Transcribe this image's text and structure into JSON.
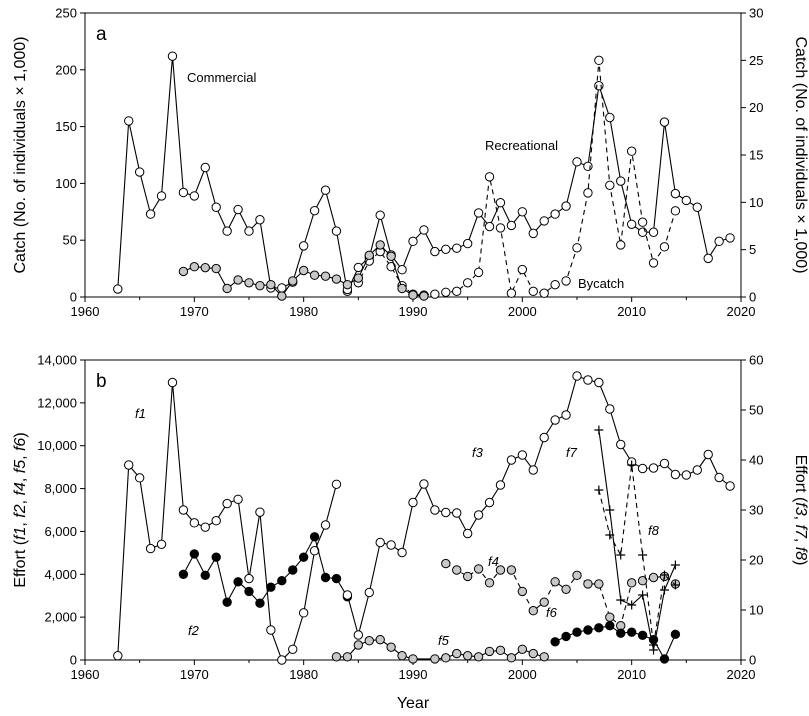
{
  "chart_data": [
    {
      "type": "line",
      "panel": "a",
      "xlabel": "",
      "ylabel": "Catch (No. of individuals × 1,000)",
      "y2label": "Catch (No. of individuals × 1,000)",
      "xlim": [
        1960,
        2020
      ],
      "ylim": [
        0,
        250
      ],
      "y2lim": [
        0,
        30
      ],
      "xticks": [
        "1960",
        "1970",
        "1980",
        "1990",
        "2000",
        "2010",
        "2020"
      ],
      "yticks": [
        "0",
        "50",
        "100",
        "150",
        "200",
        "250"
      ],
      "y2ticks": [
        "0",
        "5",
        "10",
        "15",
        "20",
        "25",
        "30"
      ],
      "series": [
        {
          "name": "Commercial",
          "axis": "left",
          "line": "solid",
          "marker": "open",
          "x": [
            1963,
            1964,
            1965,
            1966,
            1967,
            1968,
            1969,
            1970,
            1971,
            1972,
            1973,
            1974,
            1975,
            1976,
            1977,
            1978,
            1979,
            1980,
            1981,
            1982,
            1983,
            1984,
            1985,
            1986,
            1987,
            1988,
            1989,
            1990,
            1991,
            1992,
            1993,
            1994,
            1995,
            1996,
            1997,
            1998,
            1999,
            2000,
            2001,
            2002,
            2003,
            2004,
            2005,
            2006,
            2007,
            2008,
            2009,
            2010,
            2011,
            2012,
            2013,
            2014,
            2015,
            2016,
            2017,
            2018,
            2019
          ],
          "y": [
            7,
            155,
            110,
            73,
            89,
            212,
            92,
            89,
            114,
            79,
            58,
            77,
            58,
            68,
            8,
            8,
            13,
            45,
            76,
            94,
            58,
            5,
            26,
            35,
            72,
            37,
            24,
            49,
            59,
            40,
            42,
            43,
            47,
            74,
            62,
            83,
            63,
            75,
            56,
            67,
            73,
            80,
            119,
            115,
            186,
            158,
            102,
            64,
            57,
            57,
            154,
            91,
            85,
            79,
            34,
            49,
            52
          ]
        },
        {
          "name": "Recreational",
          "axis": "right",
          "line": "dashed",
          "marker": "open",
          "x": [
            1984,
            1985,
            1986,
            1987,
            1988,
            1989,
            1990,
            1991,
            1992,
            1993,
            1994,
            1995,
            1996,
            1997,
            1998,
            1999,
            2000,
            2001,
            2002,
            2003,
            2004,
            2005,
            2006,
            2007,
            2008,
            2009,
            2010,
            2011,
            2012,
            2013,
            2014
          ],
          "y": [
            0.8,
            1.5,
            3.8,
            4.8,
            3.2,
            1.2,
            0.3,
            0.2,
            0.3,
            0.5,
            0.6,
            1.5,
            2.6,
            12.7,
            7.3,
            0.4,
            2.9,
            0.6,
            0.4,
            1.3,
            1.7,
            5.2,
            11,
            25,
            11.8,
            5.5,
            15.4,
            7.9,
            3.6,
            5.3,
            9.1
          ]
        },
        {
          "name": "Bycatch",
          "axis": "right",
          "line": "solid",
          "marker": "grey",
          "x": [
            1969,
            1970,
            1971,
            1972,
            1973,
            1974,
            1975,
            1976,
            1977,
            1978,
            1979,
            1980,
            1981,
            1982,
            1983,
            1984,
            1985,
            1986,
            1987,
            1988,
            1989,
            1990,
            1991
          ],
          "y": [
            2.7,
            3.2,
            3.1,
            3,
            0.9,
            1.8,
            1.5,
            1.2,
            1.3,
            0.1,
            1.7,
            2.8,
            2.3,
            2.2,
            1.9,
            1.3,
            2,
            4.4,
            5.5,
            4.3,
            0.9,
            0.2,
            0.1
          ]
        }
      ],
      "annotations": [
        "Commercial",
        "Recreational",
        "Bycatch"
      ]
    },
    {
      "type": "line",
      "panel": "b",
      "xlabel": "Year",
      "ylabel": "Effort (f1, f2, f4, f5, f6)",
      "y2label": "Effort (f3, f7, f8)",
      "xlim": [
        1960,
        2020
      ],
      "ylim": [
        0,
        14000
      ],
      "y2lim": [
        0,
        60
      ],
      "xticks": [
        "1960",
        "1970",
        "1980",
        "1990",
        "2000",
        "2010",
        "2020"
      ],
      "yticks": [
        "0",
        "2,000",
        "4,000",
        "6,000",
        "8,000",
        "10,000",
        "12,000",
        "14,000"
      ],
      "y2ticks": [
        "0",
        "10",
        "20",
        "30",
        "40",
        "50",
        "60"
      ],
      "series": [
        {
          "name": "f1",
          "axis": "left",
          "line": "solid",
          "marker": "open",
          "x": [
            1963,
            1964,
            1965,
            1966,
            1967,
            1968,
            1969,
            1970,
            1971,
            1972,
            1973,
            1974,
            1975,
            1976,
            1977,
            1978,
            1979,
            1980,
            1981,
            1982,
            1983
          ],
          "y": [
            200,
            9100,
            8500,
            5200,
            5400,
            12950,
            7000,
            6400,
            6200,
            6500,
            7300,
            7500,
            3800,
            6900,
            1400,
            0,
            500,
            2200,
            5100,
            6300,
            8200
          ]
        },
        {
          "name": "f2",
          "axis": "left",
          "line": "solid",
          "marker": "filled",
          "x": [
            1969,
            1970,
            1971,
            1972,
            1973,
            1974,
            1975,
            1976,
            1977,
            1978,
            1979,
            1980,
            1981,
            1982,
            1983,
            1984
          ],
          "y": [
            4000,
            4950,
            3950,
            4800,
            2700,
            3650,
            3200,
            2650,
            3400,
            3700,
            4200,
            4800,
            5750,
            3850,
            3800,
            2950
          ]
        },
        {
          "name": "f3",
          "axis": "right",
          "line": "solid",
          "marker": "open",
          "x": [
            1984,
            1985,
            1986,
            1987,
            1988,
            1989,
            1990,
            1991,
            1992,
            1993,
            1994,
            1995,
            1996,
            1997,
            1998,
            1999,
            2000,
            2001,
            2002,
            2003,
            2004,
            2005,
            2006,
            2007,
            2008,
            2009,
            2010,
            2011,
            2012,
            2013,
            2014,
            2015,
            2016,
            2017,
            2018,
            2019
          ],
          "y": [
            13,
            5,
            13.5,
            23.5,
            23,
            21.5,
            31.5,
            35.2,
            30,
            29.5,
            29.4,
            25.3,
            29,
            31.5,
            35,
            40,
            41,
            38,
            44.5,
            48,
            49,
            56.8,
            56,
            55.5,
            50.2,
            43.1,
            39.6,
            38.3,
            38.4,
            39.3,
            37.1,
            37,
            38,
            41.1,
            36.5,
            34.8
          ]
        },
        {
          "name": "f4",
          "axis": "left",
          "line": "dashed",
          "marker": "grey",
          "x": [
            1993,
            1994,
            1995,
            1996,
            1997,
            1998,
            1999,
            2000,
            2001,
            2002,
            2003,
            2004,
            2005,
            2006,
            2007,
            2008,
            2009,
            2010,
            2011,
            2012,
            2013,
            2014
          ],
          "y": [
            4500,
            4200,
            3900,
            4250,
            3600,
            4200,
            4200,
            3200,
            2300,
            2700,
            3650,
            3300,
            3950,
            3550,
            3550,
            2000,
            1600,
            3600,
            3700,
            3850,
            3900,
            3550
          ]
        },
        {
          "name": "f5",
          "axis": "left",
          "line": "solid",
          "marker": "grey",
          "x": [
            1983,
            1984,
            1985,
            1986,
            1987,
            1988,
            1989,
            1990,
            1992,
            1993,
            1994,
            1995,
            1996,
            1997,
            1998,
            1999,
            2000,
            2001,
            2002
          ],
          "y": [
            150,
            150,
            700,
            900,
            950,
            600,
            200,
            50,
            50,
            100,
            300,
            200,
            150,
            400,
            450,
            100,
            500,
            300,
            150
          ]
        },
        {
          "name": "f6",
          "axis": "left",
          "line": "solid",
          "marker": "filled",
          "x": [
            2003,
            2004,
            2005,
            2006,
            2007,
            2008,
            2009,
            2010,
            2011,
            2012,
            2013,
            2014
          ],
          "y": [
            850,
            1100,
            1300,
            1400,
            1500,
            1600,
            1250,
            1300,
            1150,
            950,
            50,
            1200
          ]
        },
        {
          "name": "f7",
          "axis": "right",
          "line": "solid",
          "marker": "plus",
          "x": [
            2007,
            2008,
            2009,
            2010,
            2011,
            2012,
            2013,
            2014
          ],
          "y": [
            46,
            30,
            12,
            11,
            13,
            2,
            14,
            19
          ]
        },
        {
          "name": "f8",
          "axis": "right",
          "line": "dashed",
          "marker": "plus",
          "x": [
            2007,
            2008,
            2009,
            2010,
            2011,
            2012,
            2013,
            2014
          ],
          "y": [
            34,
            25,
            21,
            39,
            21,
            3,
            17,
            15
          ]
        }
      ],
      "annotations": [
        {
          "series": "f1",
          "label": "f1"
        },
        {
          "series": "f2",
          "label": "f2"
        },
        {
          "series": "f3",
          "label": "f3"
        },
        {
          "series": "f4",
          "label": "f4"
        },
        {
          "series": "f5",
          "label": "f5"
        },
        {
          "series": "f6",
          "label": "f6"
        },
        {
          "series": "f7",
          "label": "f7"
        },
        {
          "series": "f8",
          "label": "f8"
        }
      ]
    }
  ],
  "panels": {
    "a": {
      "letter": "a",
      "ylabel": "Catch (No. of individuals × 1,000)",
      "y2label": "Catch (No. of individuals × 1,000)",
      "labels": {
        "commercial": "Commercial",
        "recreational": "Recreational",
        "bycatch": "Bycatch"
      }
    },
    "b": {
      "letter": "b",
      "ylabel_prefix": "Effort (",
      "ylabel_suffix": ")",
      "y2label_prefix": "Effort (",
      "y2label_suffix": ")",
      "ylabel_series": [
        "f1",
        "f2",
        "f4",
        "f5",
        "f6"
      ],
      "y2label_series": [
        "f3",
        "f7",
        "f8"
      ],
      "xlabel": "Year"
    }
  },
  "colors": {
    "line": "#000000",
    "open_marker_fill": "#ffffff",
    "grey_marker_fill": "#c8c8c8",
    "filled_marker_fill": "#000000"
  }
}
